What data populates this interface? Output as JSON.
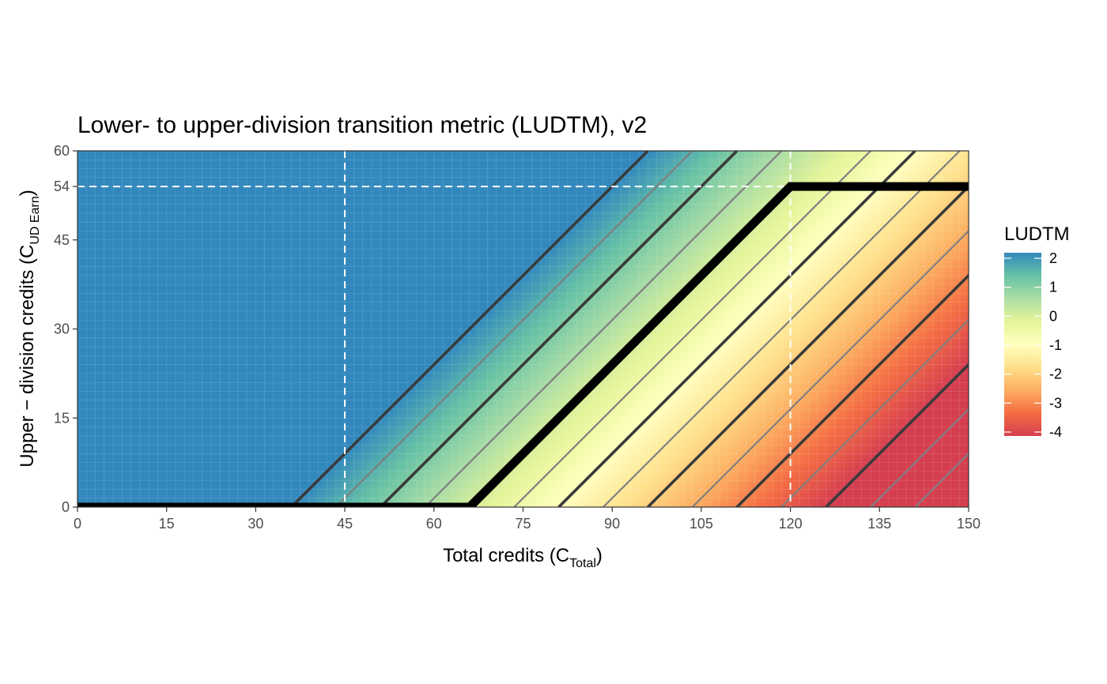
{
  "chart_data": {
    "type": "heatmap",
    "title": "Lower- to upper-division transition metric (LUDTM), v2",
    "xlabel": {
      "main": "Total credits (C",
      "sub": "Total",
      "close": ")"
    },
    "ylabel": {
      "main": "Upper − division credits (C",
      "sub": "UD Earn",
      "close": ")"
    },
    "xlim": [
      0,
      150
    ],
    "ylim": [
      0,
      60
    ],
    "x_ticks": [
      0,
      15,
      30,
      45,
      60,
      75,
      90,
      105,
      120,
      135,
      150
    ],
    "x_tick_labels": [
      "0",
      "15",
      "30",
      "45",
      "60",
      "75",
      "90",
      "105",
      "120",
      "135",
      "150"
    ],
    "y_ticks": [
      0,
      15,
      30,
      45,
      54,
      60
    ],
    "y_tick_labels": [
      "0",
      "15",
      "30",
      "45",
      "54",
      "60"
    ],
    "fill_variable": "LUDTM",
    "fill_rule": "LUDTM = (C_UD_Earn - C_Total + 66) / 15, clipped to [-4, 2]",
    "legend": {
      "title": "LUDTM",
      "breaks": [
        2,
        1,
        0,
        -1,
        -2,
        -3,
        -4
      ],
      "labels": [
        "2",
        "1",
        "0",
        "-1",
        "-2",
        "-3",
        "-4"
      ],
      "range": [
        -4,
        2
      ],
      "placement": "right",
      "palette": [
        "#3288bd",
        "#66c2a5",
        "#abdda4",
        "#e6f598",
        "#ffffbf",
        "#fee08b",
        "#fdae61",
        "#f46d43",
        "#d53e4f"
      ]
    },
    "contour_lines": {
      "x_intercepts_at_y0": [
        36,
        43.5,
        51,
        58.5,
        73.5,
        81,
        88.5,
        96,
        103.5,
        111,
        118.5,
        126,
        133.5,
        141
      ],
      "dark_intercepts": [
        36,
        51,
        81,
        96,
        111,
        126
      ],
      "slope": 1,
      "dark_color": "#3a3a3a",
      "light_color": "#7f7f7f"
    },
    "threshold_path": {
      "points": [
        [
          0,
          0
        ],
        [
          66,
          0
        ],
        [
          120,
          54
        ],
        [
          150,
          54
        ]
      ],
      "color": "#000000"
    },
    "reference_lines": {
      "vertical_x": [
        45,
        120
      ],
      "horizontal_y": [
        54
      ],
      "style": "dashed",
      "color": "#ffffff"
    },
    "grid": true
  }
}
